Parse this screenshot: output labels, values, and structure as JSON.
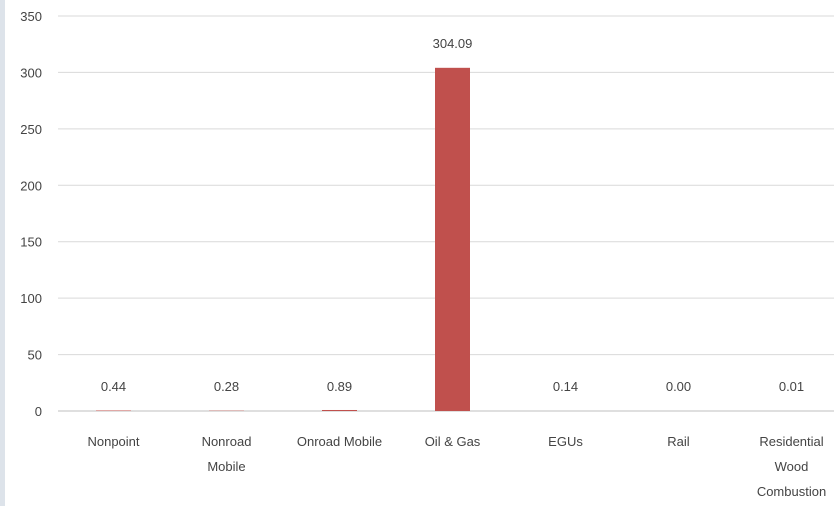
{
  "chart_data": {
    "type": "bar",
    "title": "",
    "xlabel": "",
    "ylabel": "",
    "ylim": [
      0,
      350
    ],
    "yticks": [
      0,
      50,
      100,
      150,
      200,
      250,
      300,
      350
    ],
    "grid": true,
    "legend": "none",
    "categories": [
      [
        "Nonpoint"
      ],
      [
        "Nonroad",
        "Mobile"
      ],
      [
        "Onroad Mobile"
      ],
      [
        "Oil & Gas"
      ],
      [
        "EGUs"
      ],
      [
        "Rail"
      ],
      [
        "Residential",
        "Wood",
        "Combustion"
      ]
    ],
    "values": [
      0.44,
      0.28,
      0.89,
      304.09,
      0.14,
      0.0,
      0.01
    ],
    "data_labels": [
      "0.44",
      "0.28",
      "0.89",
      "304.09",
      "0.14",
      "0.00",
      "0.01"
    ],
    "colors": {
      "bar": "#c0504d",
      "grid": "#d9d9d9",
      "axis": "#bfbfbf",
      "text": "#444444"
    }
  }
}
